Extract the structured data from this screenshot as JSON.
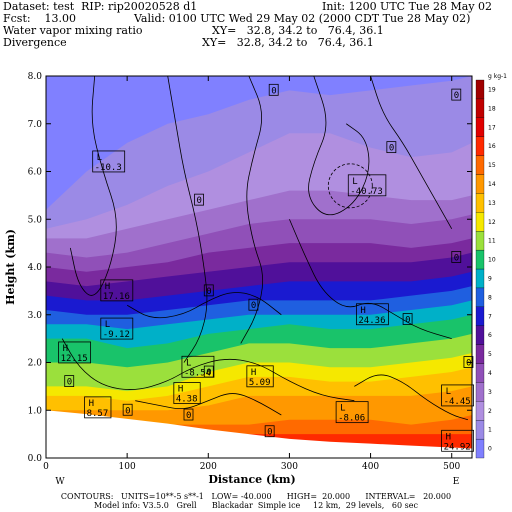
{
  "header": {
    "dataset": "Dataset: test  RIP: rip20020528 d1",
    "init": "Init: 1200 UTC Tue 28 May 02",
    "fcst": "Fcst:    13.00",
    "valid": "Valid: 0100 UTC Wed 29 May 02 (2000 CDT Tue 28 May 02)",
    "field1": "Water vapor mixing ratio",
    "xy1": "XY=   32.8, 34.2 to   76.4, 36.1",
    "field2": "Divergence",
    "xy2": "XY=   32.8, 34.2 to   76.4, 36.1"
  },
  "footer": {
    "line1": "CONTOURS:   UNITS=10**-5 s**-1   LOW= -40.000      HIGH=  20.000      INTERVAL=   20.000",
    "line2": "Model info: V3.5.0   Grell      Blackadar  Simple ice     12 km,  29 levels,   60 sec"
  },
  "chart_data": {
    "type": "area",
    "xlabel": "Distance (km)",
    "ylabel": "Height (km)",
    "xlim": [
      0,
      525
    ],
    "ylim": [
      0,
      8
    ],
    "x_ticks": [
      0,
      100,
      200,
      300,
      400,
      500
    ],
    "y_ticks": [
      "0.0",
      "1.0",
      "2.0",
      "3.0",
      "4.0",
      "5.0",
      "6.0",
      "7.0",
      "8.0"
    ],
    "left_end_label": "W",
    "right_end_label": "E",
    "colorbar": {
      "unit": "g kg-1",
      "levels": [
        "0",
        "1",
        "2",
        "3",
        "4",
        "5",
        "6",
        "7",
        "8",
        "9",
        "10",
        "11",
        "12",
        "13",
        "14",
        "15",
        "16",
        "17",
        "18",
        "19"
      ],
      "colors": [
        "#8080ff",
        "#9b8ae6",
        "#b08fe0",
        "#a070cc",
        "#9050b8",
        "#7a2a9e",
        "#50109a",
        "#1a1ad0",
        "#1f5fe0",
        "#00b0c8",
        "#19c36a",
        "#9be03c",
        "#f5e800",
        "#ffc000",
        "#ff9800",
        "#ff6a00",
        "#ff2a00",
        "#e00000",
        "#c00000",
        "#a00000"
      ]
    },
    "moisture_layers": [
      {
        "level": 0,
        "top": [
          8.0,
          8.0,
          8.0,
          8.0,
          8.0,
          8.0,
          8.0,
          8.0,
          8.0,
          8.0,
          8.0,
          8.0
        ]
      },
      {
        "level": 1,
        "top": [
          5.2,
          6.0,
          6.6,
          7.0,
          7.2,
          7.5,
          7.7,
          7.6,
          7.7,
          7.8,
          7.9,
          8.0
        ]
      },
      {
        "level": 2,
        "top": [
          4.8,
          5.0,
          5.3,
          5.7,
          6.0,
          6.4,
          6.8,
          6.8,
          6.5,
          6.3,
          6.4,
          6.6
        ]
      },
      {
        "level": 3,
        "top": [
          4.6,
          4.6,
          4.8,
          5.0,
          5.2,
          5.4,
          5.6,
          5.6,
          5.5,
          5.4,
          5.4,
          5.5
        ]
      },
      {
        "level": 4,
        "top": [
          4.3,
          4.2,
          4.3,
          4.5,
          4.7,
          4.9,
          5.0,
          5.0,
          5.0,
          4.9,
          5.0,
          5.1
        ]
      },
      {
        "level": 5,
        "top": [
          4.0,
          3.9,
          4.0,
          4.1,
          4.3,
          4.4,
          4.5,
          4.5,
          4.5,
          4.4,
          4.5,
          4.6
        ]
      },
      {
        "level": 6,
        "top": [
          3.7,
          3.6,
          3.7,
          3.8,
          3.9,
          4.0,
          4.1,
          4.1,
          4.1,
          4.1,
          4.2,
          4.3
        ]
      },
      {
        "level": 7,
        "top": [
          3.4,
          3.3,
          3.3,
          3.4,
          3.5,
          3.6,
          3.7,
          3.7,
          3.7,
          3.7,
          3.8,
          3.9
        ]
      },
      {
        "level": 8,
        "top": [
          3.1,
          3.0,
          3.0,
          3.1,
          3.2,
          3.3,
          3.3,
          3.3,
          3.3,
          3.4,
          3.5,
          3.6
        ]
      },
      {
        "level": 9,
        "top": [
          2.8,
          2.8,
          2.7,
          2.8,
          2.9,
          3.0,
          3.0,
          3.0,
          3.0,
          3.1,
          3.2,
          3.3
        ]
      },
      {
        "level": 10,
        "top": [
          2.5,
          2.5,
          2.3,
          2.4,
          2.6,
          2.7,
          2.8,
          2.7,
          2.7,
          2.8,
          2.9,
          3.0
        ]
      },
      {
        "level": 11,
        "top": [
          2.0,
          2.0,
          1.9,
          2.0,
          2.2,
          2.4,
          2.4,
          2.3,
          2.3,
          2.4,
          2.5,
          2.6
        ]
      },
      {
        "level": 12,
        "top": [
          1.5,
          1.5,
          1.4,
          1.5,
          1.8,
          2.0,
          2.0,
          1.9,
          1.9,
          2.0,
          2.1,
          2.2
        ]
      },
      {
        "level": 13,
        "top": [
          1.3,
          1.3,
          1.2,
          1.3,
          1.5,
          1.7,
          1.7,
          1.6,
          1.6,
          1.7,
          1.8,
          1.9
        ]
      },
      {
        "level": 14,
        "top": [
          1.0,
          1.0,
          1.0,
          1.0,
          1.1,
          1.3,
          1.3,
          1.3,
          1.3,
          1.3,
          1.4,
          1.5
        ]
      },
      {
        "level": 15,
        "top": [
          0.7,
          0.7,
          0.7,
          0.7,
          0.7,
          0.7,
          0.8,
          0.8,
          0.8,
          0.7,
          0.8,
          0.9
        ]
      },
      {
        "level": 16,
        "top": [
          0.5,
          0.5,
          0.5,
          0.5,
          0.5,
          0.5,
          0.5,
          0.5,
          0.5,
          0.5,
          0.5,
          0.5
        ]
      }
    ],
    "layer_x": [
      0,
      50,
      100,
      150,
      200,
      250,
      300,
      350,
      400,
      450,
      500,
      525
    ],
    "terrain": {
      "x": [
        0,
        50,
        100,
        150,
        200,
        250,
        300,
        350,
        400,
        450,
        500,
        525
      ],
      "y": [
        1.0,
        0.92,
        0.82,
        0.72,
        0.6,
        0.5,
        0.4,
        0.34,
        0.3,
        0.26,
        0.22,
        0.2
      ]
    },
    "annotations": [
      {
        "text": "L",
        "value": "-10.3",
        "x": 60,
        "y": 6.2
      },
      {
        "text": "L",
        "value": "-40.73",
        "x": 375,
        "y": 5.7
      },
      {
        "text": "H",
        "value": "17.16",
        "x": 70,
        "y": 3.5
      },
      {
        "text": "H",
        "value": "24.36",
        "x": 385,
        "y": 3.0
      },
      {
        "text": "L",
        "value": "-9.12",
        "x": 70,
        "y": 2.7
      },
      {
        "text": "H",
        "value": "12.15",
        "x": 18,
        "y": 2.2
      },
      {
        "text": "L",
        "value": "-8.54",
        "x": 170,
        "y": 1.9
      },
      {
        "text": "H",
        "value": "5.09",
        "x": 250,
        "y": 1.7
      },
      {
        "text": "H",
        "value": "4.38",
        "x": 160,
        "y": 1.35
      },
      {
        "text": "H",
        "value": "8.57",
        "x": 50,
        "y": 1.05
      },
      {
        "text": "L",
        "value": "-8.06",
        "x": 360,
        "y": 0.95
      },
      {
        "text": "L",
        "value": "-4.45",
        "x": 490,
        "y": 1.3
      },
      {
        "text": "H",
        "value": "24.92",
        "x": 490,
        "y": 0.35
      }
    ],
    "zero_labels": [
      {
        "text": "0",
        "x": 280,
        "y": 7.7
      },
      {
        "text": "0",
        "x": 505,
        "y": 7.6
      },
      {
        "text": "0",
        "x": 425,
        "y": 6.5
      },
      {
        "text": "0",
        "x": 188,
        "y": 5.4
      },
      {
        "text": "0",
        "x": 505,
        "y": 4.2
      },
      {
        "text": "0",
        "x": 200,
        "y": 3.5
      },
      {
        "text": "0",
        "x": 255,
        "y": 3.2
      },
      {
        "text": "0",
        "x": 445,
        "y": 2.9
      },
      {
        "text": "0",
        "x": 520,
        "y": 2.0
      },
      {
        "text": "0",
        "x": 200,
        "y": 1.8
      },
      {
        "text": "0",
        "x": 28,
        "y": 1.6
      },
      {
        "text": "0",
        "x": 100,
        "y": 1.0
      },
      {
        "text": "0",
        "x": 175,
        "y": 0.9
      },
      {
        "text": "0",
        "x": 275,
        "y": 0.55
      }
    ]
  }
}
